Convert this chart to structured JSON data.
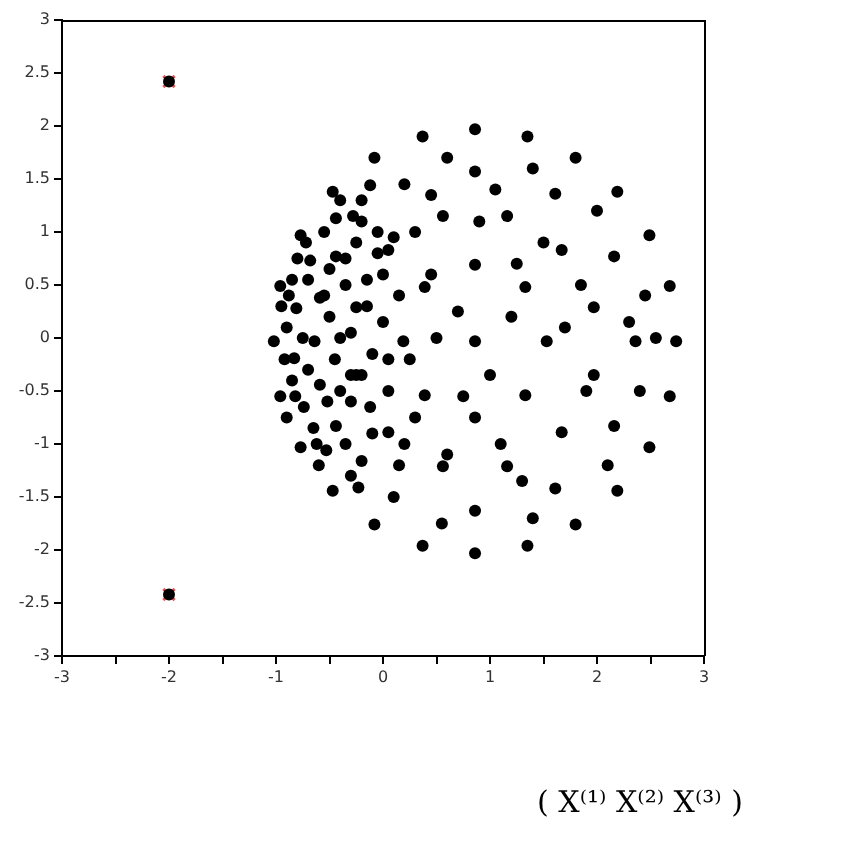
{
  "chart_data": {
    "type": "scatter",
    "xlim": [
      -3,
      3
    ],
    "xticks": [
      -3,
      {
        "value": -2.5,
        "label": null
      },
      -2,
      {
        "value": -1.5,
        "label": null
      },
      -1,
      {
        "value": -0.5,
        "label": null
      },
      0,
      {
        "value": 0.5,
        "label": null
      },
      1,
      {
        "value": 1.5,
        "label": null
      },
      2,
      {
        "value": 2.5,
        "label": null
      },
      3
    ],
    "ylim": [
      -3,
      3
    ],
    "yticks": [
      -3,
      -2.5,
      -2,
      -1.5,
      -1,
      -0.5,
      0,
      0.5,
      1,
      1.5,
      2,
      2.5,
      3
    ],
    "series": [
      {
        "color": "#000000",
        "marker": "circle",
        "x": [
          2.74,
          2.68,
          2.49,
          2.19,
          1.8,
          1.35,
          0.86,
          0.37,
          -0.08,
          -0.47,
          -0.77,
          -0.96,
          -1.02,
          -0.96,
          -0.77,
          -0.47,
          -0.08,
          0.37,
          0.86,
          1.35,
          1.8,
          2.19,
          2.49,
          2.68,
          -0.12,
          -0.44,
          -0.68,
          -0.81,
          -0.83,
          -0.74,
          -0.53,
          -0.23,
          -0.2,
          -0.44,
          -0.59,
          -0.64,
          -0.59,
          -0.44,
          -0.2,
          -0.9,
          -0.85,
          -0.7,
          -0.65,
          -0.5,
          -0.45,
          -0.35,
          -0.3,
          -0.25,
          -0.1,
          -0.3,
          -0.15,
          -0.2,
          0.0,
          0.05,
          -0.55,
          -0.6,
          -0.8,
          -0.9,
          -0.95,
          1.97,
          1.67,
          1.16,
          0.56,
          0.05,
          -0.25,
          -0.25,
          0.05,
          0.56,
          1.16,
          1.67,
          1.97,
          2.36,
          2.16,
          1.61,
          0.86,
          0.86,
          1.61,
          2.16,
          1.53,
          1.33,
          0.86,
          0.39,
          0.19,
          0.39,
          0.86,
          1.33,
          0.86,
          1.2,
          0.7,
          1.0,
          0.5,
          1.7,
          2.0,
          1.4,
          0.6,
          0.2,
          2.45,
          2.4,
          2.1,
          1.4,
          0.55,
          0.1,
          1.9,
          1.5,
          0.9,
          0.3,
          1.1,
          0.6,
          1.85,
          2.55,
          0.25,
          0.0,
          -0.1,
          0.15,
          0.3,
          -0.75,
          -0.85,
          -0.7,
          -0.4,
          -0.5,
          -0.35,
          -0.2,
          -0.05,
          0.15,
          -0.4,
          -0.92,
          -0.88,
          -0.82,
          -0.72,
          -0.62,
          -0.55,
          -0.52,
          -0.4,
          -0.35,
          -0.3,
          -0.15,
          -0.12,
          -0.05,
          0.05,
          0.1,
          0.2,
          -0.28,
          -0.3,
          0.45,
          1.05,
          1.3,
          2.3,
          1.25,
          0.75,
          0.45,
          -2,
          -2
        ],
        "values": [
          -0.03,
          0.49,
          0.97,
          1.38,
          1.7,
          1.9,
          1.97,
          1.9,
          1.7,
          1.38,
          0.97,
          0.49,
          -0.03,
          -0.55,
          -1.03,
          -1.44,
          -1.76,
          -1.96,
          -2.03,
          -1.96,
          -1.76,
          -1.44,
          -1.03,
          -0.55,
          1.44,
          1.13,
          0.73,
          0.28,
          -0.19,
          -0.65,
          -1.06,
          -1.41,
          1.1,
          0.77,
          0.38,
          -0.03,
          -0.44,
          -0.83,
          -1.16,
          0.1,
          -0.4,
          0.55,
          -0.85,
          0.2,
          -0.2,
          0.5,
          -0.6,
          0.9,
          -0.9,
          0.05,
          0.3,
          -0.35,
          0.6,
          -0.5,
          1.0,
          -1.2,
          0.75,
          -0.75,
          0.3,
          0.29,
          0.83,
          1.15,
          1.15,
          0.83,
          0.29,
          -0.35,
          -0.89,
          -1.21,
          -1.21,
          -0.89,
          -0.35,
          -0.03,
          0.77,
          1.36,
          1.57,
          -1.63,
          -1.42,
          -0.83,
          -0.03,
          0.48,
          0.69,
          0.48,
          -0.03,
          -0.54,
          -0.75,
          -0.54,
          -0.03,
          0.2,
          0.25,
          -0.35,
          0.0,
          0.1,
          1.2,
          1.6,
          1.7,
          1.45,
          0.4,
          -0.5,
          -1.2,
          -1.7,
          -1.75,
          -1.5,
          -0.5,
          0.9,
          1.1,
          1.0,
          -1.0,
          -1.1,
          0.5,
          0.0,
          -0.2,
          0.15,
          -0.15,
          0.4,
          -0.75,
          0.0,
          0.55,
          -0.3,
          -0.5,
          0.65,
          -1.0,
          1.3,
          1.0,
          -1.2,
          1.3,
          -0.2,
          0.4,
          -0.55,
          0.9,
          -1.0,
          0.4,
          -0.6,
          0.0,
          0.75,
          -0.35,
          0.55,
          -0.65,
          0.8,
          -0.2,
          0.95,
          -1.0,
          1.15,
          -1.3,
          1.35,
          1.4,
          -1.35,
          0.15,
          0.7,
          -0.55,
          0.6,
          2.42,
          -2.42
        ]
      },
      {
        "color": "#ee5555",
        "marker": "cross",
        "x": [
          -2,
          -2
        ],
        "values": [
          2.42,
          -2.42
        ]
      }
    ],
    "annotations": [
      "( X⁽¹⁾  X⁽²⁾  X⁽³⁾  )"
    ]
  }
}
